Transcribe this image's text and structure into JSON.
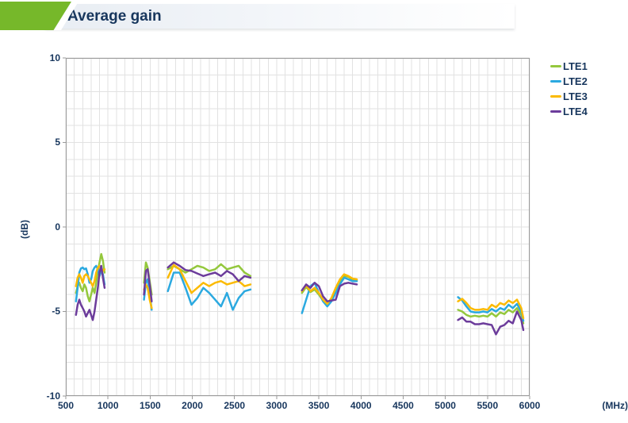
{
  "header": {
    "title": "Average gain",
    "accent_color": "#76b82a",
    "title_color": "#17365d"
  },
  "legend": {
    "position": "top-right",
    "items": [
      {
        "label": "LTE1",
        "color": "#94c83d"
      },
      {
        "label": "LTE2",
        "color": "#2ba9e0"
      },
      {
        "label": "LTE3",
        "color": "#fbba00"
      },
      {
        "label": "LTE4",
        "color": "#6c3c9b"
      }
    ]
  },
  "chart_data": {
    "type": "line",
    "title": "Average gain",
    "xlabel": "(MHz)",
    "ylabel": "(dB)",
    "xlim": [
      500,
      6000
    ],
    "ylim": [
      -10,
      10
    ],
    "x_major_ticks": [
      500,
      1000,
      1500,
      2000,
      2500,
      3000,
      3500,
      4000,
      4500,
      5000,
      5500,
      6000
    ],
    "x_minor_step": 100,
    "y_major_ticks": [
      10,
      5,
      0,
      -5,
      -10
    ],
    "y_minor_step": 1,
    "grid": true,
    "grid_color": "#e2e2e2",
    "axis_color": "#9a9a9a",
    "tick_text_color": "#17365d",
    "legend_position": "top-right",
    "series_order": [
      "LTE1",
      "LTE2",
      "LTE3",
      "LTE4"
    ],
    "colors": {
      "LTE1": "#94c83d",
      "LTE2": "#2ba9e0",
      "LTE3": "#fbba00",
      "LTE4": "#6c3c9b"
    },
    "segments": [
      {
        "x": [
          620,
          640,
          660,
          680,
          700,
          720,
          740,
          760,
          780,
          800,
          820,
          840,
          860,
          880,
          900,
          920,
          940,
          960
        ],
        "series": {
          "LTE1": [
            -3.9,
            -3.5,
            -3.3,
            -3.6,
            -3.8,
            -3.4,
            -3.6,
            -4.1,
            -4.4,
            -4.0,
            -3.6,
            -3.9,
            -3.3,
            -2.6,
            -2.1,
            -1.6,
            -2.0,
            -2.7
          ],
          "LTE2": [
            -4.4,
            -3.6,
            -2.7,
            -2.45,
            -2.4,
            -2.5,
            -2.45,
            -2.8,
            -3.3,
            -3.1,
            -2.6,
            -2.4,
            -2.3,
            -2.5,
            -2.9,
            -2.6,
            -2.8,
            -3.4
          ],
          "LTE3": [
            -3.5,
            -3.0,
            -2.8,
            -3.0,
            -3.3,
            -2.9,
            -2.8,
            -2.9,
            -3.1,
            -3.3,
            -3.5,
            -3.2,
            -2.7,
            -2.4,
            -2.3,
            -2.4,
            -2.6,
            -2.5
          ],
          "LTE4": [
            -5.2,
            -4.6,
            -4.3,
            -4.6,
            -4.8,
            -5.0,
            -5.3,
            -5.1,
            -4.9,
            -5.2,
            -5.5,
            -5.0,
            -4.3,
            -3.6,
            -2.7,
            -2.3,
            -3.0,
            -3.6
          ]
        }
      },
      {
        "x": [
          1427,
          1450,
          1470,
          1495,
          1518
        ],
        "series": {
          "LTE1": [
            -3.3,
            -2.1,
            -2.4,
            -3.2,
            -4.0
          ],
          "LTE2": [
            -4.3,
            -3.3,
            -3.1,
            -3.9,
            -4.9
          ],
          "LTE3": [
            -3.7,
            -3.4,
            -3.6,
            -4.3,
            -4.8
          ],
          "LTE4": [
            -4.0,
            -2.6,
            -2.5,
            -3.4,
            -4.4
          ]
        }
      },
      {
        "x": [
          1710,
          1780,
          1850,
          1920,
          1990,
          2060,
          2130,
          2200,
          2270,
          2340,
          2410,
          2480,
          2550,
          2620,
          2690
        ],
        "series": {
          "LTE1": [
            -2.5,
            -2.3,
            -2.5,
            -2.7,
            -2.5,
            -2.3,
            -2.4,
            -2.6,
            -2.5,
            -2.2,
            -2.5,
            -2.4,
            -2.3,
            -2.7,
            -2.9
          ],
          "LTE2": [
            -3.8,
            -2.7,
            -2.7,
            -3.6,
            -4.6,
            -4.2,
            -3.6,
            -3.9,
            -4.3,
            -4.7,
            -3.9,
            -4.9,
            -4.2,
            -3.8,
            -3.7
          ],
          "LTE3": [
            -3.0,
            -2.25,
            -2.5,
            -3.2,
            -3.9,
            -3.6,
            -3.3,
            -3.5,
            -3.3,
            -3.2,
            -3.4,
            -3.3,
            -3.2,
            -3.5,
            -3.4
          ],
          "LTE4": [
            -2.4,
            -2.1,
            -2.3,
            -2.55,
            -2.6,
            -2.75,
            -2.9,
            -2.8,
            -2.7,
            -2.9,
            -2.6,
            -2.8,
            -3.2,
            -2.9,
            -3.0
          ]
        }
      },
      {
        "x": [
          3300,
          3350,
          3400,
          3450,
          3500,
          3550,
          3600,
          3650,
          3700,
          3750,
          3800,
          3850,
          3900,
          3950
        ],
        "series": {
          "LTE1": [
            -3.9,
            -3.55,
            -3.85,
            -3.7,
            -4.0,
            -4.35,
            -4.6,
            -4.3,
            -3.7,
            -3.2,
            -2.9,
            -2.95,
            -3.1,
            -3.15
          ],
          "LTE2": [
            -5.1,
            -4.3,
            -3.5,
            -3.3,
            -3.9,
            -4.4,
            -4.7,
            -4.4,
            -3.9,
            -3.4,
            -3.0,
            -3.1,
            -3.2,
            -3.2
          ],
          "LTE3": [
            -3.8,
            -3.45,
            -3.8,
            -3.6,
            -3.9,
            -4.3,
            -4.55,
            -4.2,
            -3.6,
            -3.1,
            -2.8,
            -2.9,
            -3.05,
            -3.1
          ],
          "LTE4": [
            -3.75,
            -3.4,
            -3.6,
            -3.3,
            -3.5,
            -4.1,
            -4.4,
            -4.35,
            -4.3,
            -3.5,
            -3.35,
            -3.3,
            -3.35,
            -3.4
          ]
        }
      },
      {
        "x": [
          5150,
          5200,
          5250,
          5300,
          5350,
          5400,
          5450,
          5500,
          5550,
          5600,
          5650,
          5700,
          5750,
          5800,
          5850,
          5900,
          5925
        ],
        "series": {
          "LTE1": [
            -4.9,
            -5.0,
            -5.2,
            -5.3,
            -5.25,
            -5.3,
            -5.25,
            -5.3,
            -5.1,
            -5.3,
            -5.05,
            -5.15,
            -4.9,
            -5.05,
            -4.8,
            -5.2,
            -5.7
          ],
          "LTE2": [
            -4.15,
            -4.35,
            -4.7,
            -5.0,
            -5.05,
            -5.05,
            -5.0,
            -5.05,
            -4.85,
            -5.0,
            -4.8,
            -4.9,
            -4.6,
            -4.8,
            -4.55,
            -5.0,
            -5.55
          ],
          "LTE3": [
            -4.4,
            -4.25,
            -4.5,
            -4.8,
            -4.9,
            -4.9,
            -4.85,
            -4.9,
            -4.6,
            -4.75,
            -4.5,
            -4.6,
            -4.35,
            -4.5,
            -4.3,
            -4.8,
            -5.4
          ],
          "LTE4": [
            -5.5,
            -5.35,
            -5.6,
            -5.6,
            -5.75,
            -5.75,
            -5.7,
            -5.75,
            -5.8,
            -6.35,
            -5.9,
            -5.8,
            -5.55,
            -5.7,
            -5.0,
            -5.5,
            -6.1
          ]
        }
      }
    ]
  }
}
